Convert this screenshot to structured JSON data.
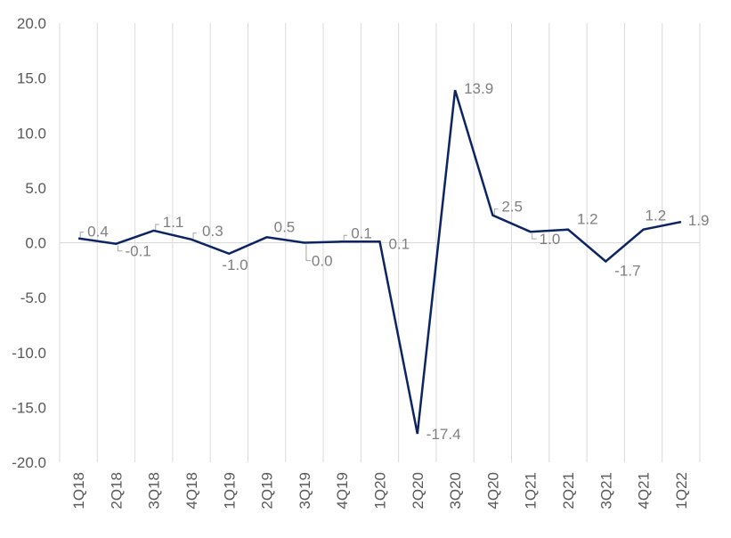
{
  "chart_data": {
    "type": "line",
    "title": "",
    "xlabel": "",
    "ylabel": "",
    "ylim": [
      -20,
      20
    ],
    "yticks": [
      "20.0",
      "15.0",
      "10.0",
      "5.0",
      "0.0",
      "-5.0",
      "-10.0",
      "-15.0",
      "-20.0"
    ],
    "grid": {
      "vertical": true,
      "horizontal": false,
      "zero_line": true
    },
    "legend": null,
    "categories": [
      "1Q18",
      "2Q18",
      "3Q18",
      "4Q18",
      "1Q19",
      "2Q19",
      "3Q19",
      "4Q19",
      "1Q20",
      "2Q20",
      "3Q20",
      "4Q20",
      "1Q21",
      "2Q21",
      "3Q21",
      "4Q21",
      "1Q22"
    ],
    "series": [
      {
        "name": "",
        "color": "#0c2461",
        "values": [
          0.4,
          -0.1,
          1.1,
          0.3,
          -1.0,
          0.5,
          0.0,
          0.1,
          0.1,
          -17.4,
          13.9,
          2.5,
          1.0,
          1.2,
          -1.7,
          1.2,
          1.9
        ],
        "labels": [
          "0.4",
          "-0.1",
          "1.1",
          "0.3",
          "-1.0",
          "0.5",
          "0.0",
          "0.1",
          "0.1",
          "-17.4",
          "13.9",
          "2.5",
          "1.0",
          "1.2",
          "-1.7",
          "1.2",
          "1.9"
        ]
      }
    ]
  }
}
